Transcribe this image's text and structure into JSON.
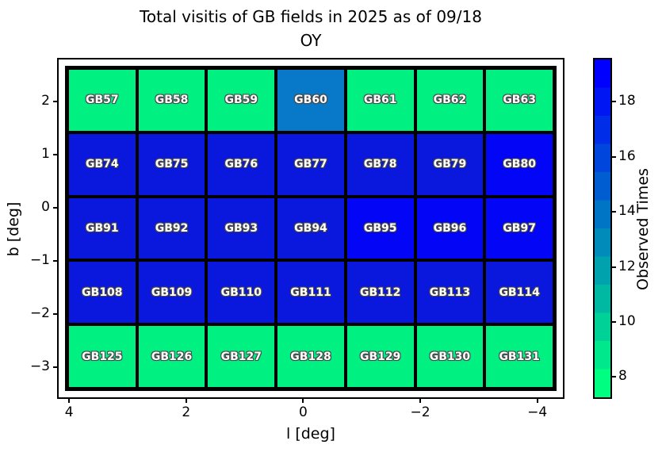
{
  "title": {
    "line1": "Total visitis of GB fields in 2025 as of 09/18",
    "line2": "OY"
  },
  "axes": {
    "xlabel": "l [deg]",
    "ylabel": "b [deg]"
  },
  "colorbar": {
    "label": "Observed Times",
    "ticks": [
      8,
      10,
      12,
      14,
      16,
      18
    ],
    "vmin": 7.2,
    "vmax": 19.6,
    "band_colors_bottom_to_top": [
      "#00FF80",
      "#00E88C",
      "#00D197",
      "#00B9A3",
      "#00A2AE",
      "#008BBA",
      "#0074C5",
      "#005DD1",
      "#0046DC",
      "#002EE8",
      "#0017F3",
      "#0000FF"
    ]
  },
  "value_colors": {
    "8": "#00F182",
    "14": "#0878C8",
    "18": "#0A18DD",
    "19": "#0305F6"
  },
  "chart_data": {
    "type": "heatmap",
    "title": "Total visitis of GB fields in 2025 as of 09/18 OY",
    "xlabel": "l [deg]",
    "ylabel": "b [deg]",
    "x_ticks": [
      4,
      2,
      0,
      -2,
      -4
    ],
    "y_ticks": [
      2,
      1,
      0,
      -1,
      -2,
      -3
    ],
    "x_axis_reversed": true,
    "xlim": [
      4.07,
      -4.33
    ],
    "ylim_top_to_bottom": [
      2.68,
      -3.45
    ],
    "grid_shape": {
      "rows": 5,
      "cols": 7
    },
    "colorbar_label": "Observed Times",
    "colorbar_ticks": [
      8,
      10,
      12,
      14,
      16,
      18
    ],
    "colormap": "winter_r (green = low, blue = high)",
    "rows": [
      {
        "fields": [
          "GB57",
          "GB58",
          "GB59",
          "GB60",
          "GB61",
          "GB62",
          "GB63"
        ],
        "observed_times": [
          8,
          8,
          8,
          14,
          8,
          8,
          8
        ]
      },
      {
        "fields": [
          "GB74",
          "GB75",
          "GB76",
          "GB77",
          "GB78",
          "GB79",
          "GB80"
        ],
        "observed_times": [
          18,
          18,
          18,
          18,
          18,
          18,
          19
        ]
      },
      {
        "fields": [
          "GB91",
          "GB92",
          "GB93",
          "GB94",
          "GB95",
          "GB96",
          "GB97"
        ],
        "observed_times": [
          18,
          18,
          18,
          18,
          19,
          19,
          19
        ]
      },
      {
        "fields": [
          "GB108",
          "GB109",
          "GB110",
          "GB111",
          "GB112",
          "GB113",
          "GB114"
        ],
        "observed_times": [
          18,
          18,
          18,
          18,
          18,
          18,
          18
        ]
      },
      {
        "fields": [
          "GB125",
          "GB126",
          "GB127",
          "GB128",
          "GB129",
          "GB130",
          "GB131"
        ],
        "observed_times": [
          8,
          8,
          8,
          8,
          8,
          8,
          8
        ]
      }
    ]
  }
}
